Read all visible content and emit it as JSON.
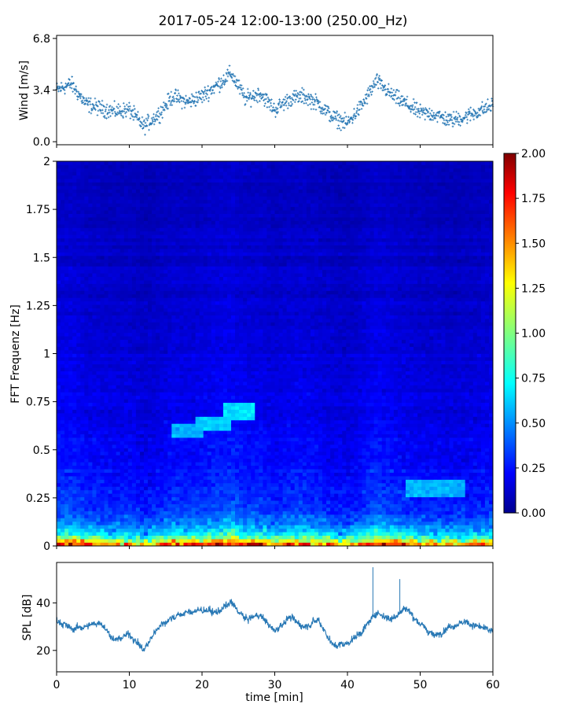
{
  "title": "2017-05-24 12:00-13:00 (250.00_Hz)",
  "colors": {
    "series": "#2878b5",
    "spectrogram_low": "#00008f",
    "spectrogram_high": "#800000"
  },
  "chart_data": [
    {
      "type": "scatter",
      "panel": "wind",
      "title": "",
      "xlabel": "",
      "ylabel": "Wind [m/s]",
      "xlim": [
        0,
        60
      ],
      "ylim": [
        -0.2,
        7.0
      ],
      "yticks": [
        "0.0",
        "3.4",
        "6.8"
      ],
      "ytick_values": [
        0.0,
        3.4,
        6.8
      ],
      "grid": false,
      "series": [
        {
          "x": [
            0,
            2,
            4,
            6,
            8,
            10,
            12,
            14,
            16,
            18,
            20,
            22,
            24,
            26,
            28,
            30,
            32,
            34,
            36,
            38,
            40,
            42,
            44,
            46,
            48,
            50,
            52,
            54,
            56,
            58,
            60
          ],
          "values": [
            3.4,
            3.8,
            2.5,
            2.2,
            2.0,
            2.1,
            1.0,
            1.8,
            3.0,
            2.6,
            3.0,
            3.7,
            4.5,
            2.8,
            3.2,
            2.1,
            2.8,
            3.0,
            2.5,
            1.6,
            1.2,
            2.4,
            4.0,
            3.1,
            2.5,
            1.9,
            1.8,
            1.4,
            1.6,
            2.0,
            2.4
          ]
        }
      ]
    },
    {
      "type": "heatmap",
      "panel": "spectrogram",
      "title": "",
      "xlabel": "",
      "ylabel": "FFT Frequenz [Hz]",
      "xlim": [
        0,
        60
      ],
      "ylim": [
        0,
        2
      ],
      "yticks": [
        "0",
        "0.25",
        "0.5",
        "0.75",
        "1",
        "1.25",
        "1.5",
        "1.75",
        "2"
      ],
      "ytick_values": [
        0,
        0.25,
        0.5,
        0.75,
        1.0,
        1.25,
        1.5,
        1.75,
        2.0
      ],
      "colorbar": {
        "range": [
          0,
          2
        ],
        "ticks": [
          "0.00",
          "0.25",
          "0.50",
          "0.75",
          "1.00",
          "1.25",
          "1.50",
          "1.75",
          "2.00"
        ],
        "tick_values": [
          0,
          0.25,
          0.5,
          0.75,
          1.0,
          1.25,
          1.5,
          1.75,
          2.0
        ],
        "colormap": "jet",
        "placement": "right"
      },
      "freq_profile": {
        "freqs": [
          0.0,
          0.02,
          0.05,
          0.1,
          0.15,
          0.2,
          0.3,
          0.5,
          0.75,
          1.0,
          1.5,
          2.0
        ],
        "values": [
          1.7,
          1.35,
          0.8,
          0.55,
          0.42,
          0.35,
          0.3,
          0.25,
          0.2,
          0.18,
          0.14,
          0.12
        ]
      },
      "features": [
        {
          "t_start": 16,
          "t_end": 20,
          "freq": 0.6,
          "value": 0.6
        },
        {
          "t_start": 19,
          "t_end": 24,
          "freq": 0.64,
          "value": 0.65
        },
        {
          "t_start": 23,
          "t_end": 27,
          "freq": 0.7,
          "value": 0.7
        },
        {
          "t_start": 48,
          "t_end": 56,
          "freq": 0.3,
          "value": 0.6
        }
      ]
    },
    {
      "type": "line",
      "panel": "spl",
      "title": "",
      "xlabel": "time [min]",
      "ylabel": "SPL [dB]",
      "xlim": [
        0,
        60
      ],
      "ylim": [
        11,
        57
      ],
      "xticks": [
        "0",
        "10",
        "20",
        "30",
        "40",
        "50",
        "60"
      ],
      "xtick_values": [
        0,
        10,
        20,
        30,
        40,
        50,
        60
      ],
      "yticks": [
        "20",
        "40"
      ],
      "ytick_values": [
        20,
        40
      ],
      "grid": false,
      "series": [
        {
          "x": [
            0,
            2,
            4,
            6,
            8,
            10,
            12,
            14,
            16,
            18,
            20,
            22,
            24,
            26,
            28,
            30,
            32,
            34,
            36,
            38,
            40,
            42,
            44,
            46,
            48,
            50,
            52,
            54,
            56,
            58,
            60
          ],
          "values": [
            33,
            29,
            30,
            32,
            24,
            27,
            20,
            30,
            34,
            36,
            37,
            36,
            40,
            33,
            35,
            28,
            34,
            30,
            33,
            22,
            23,
            28,
            36,
            33,
            38,
            31,
            26,
            30,
            32,
            30,
            28
          ],
          "spikes": [
            {
              "x": 43.5,
              "value": 55
            },
            {
              "x": 47.2,
              "value": 50
            }
          ]
        }
      ]
    }
  ]
}
